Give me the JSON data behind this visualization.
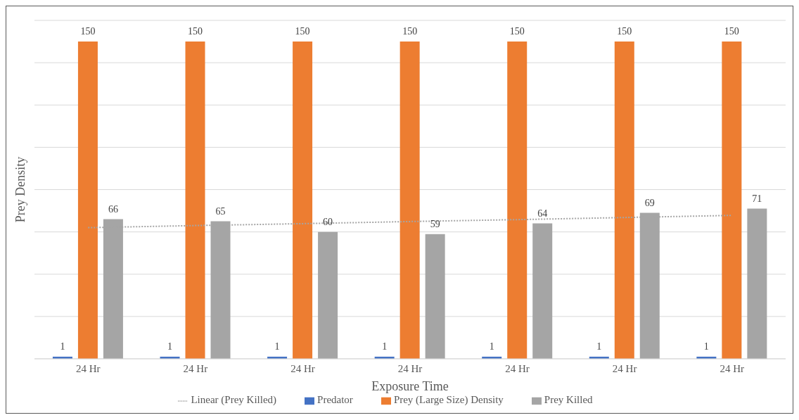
{
  "chart_data": {
    "type": "bar",
    "xlabel": "Exposure Time",
    "ylabel": "Prey Density",
    "categories": [
      "24 Hr",
      "24 Hr",
      "24 Hr",
      "24 Hr",
      "24 Hr",
      "24 Hr",
      "24 Hr"
    ],
    "series": [
      {
        "name": "Predator",
        "color": "#4472c4",
        "values": [
          1,
          1,
          1,
          1,
          1,
          1,
          1
        ]
      },
      {
        "name": "Prey (Large Size) Density",
        "color": "#ed7d31",
        "values": [
          150,
          150,
          150,
          150,
          150,
          150,
          150
        ]
      },
      {
        "name": "Prey Killed",
        "color": "#a5a5a5",
        "values": [
          66,
          65,
          60,
          59,
          64,
          69,
          71
        ]
      },
      {
        "name": "Linear (Prey Killed)",
        "type": "line",
        "color": "#a5a5a5",
        "line_style": "dotted",
        "marker": "none",
        "values": [
          62.0,
          63.0,
          63.9,
          64.9,
          65.8,
          66.8,
          67.8
        ],
        "value_labels": [
          null,
          null,
          null,
          null,
          null,
          null,
          null
        ]
      }
    ],
    "data_labels": true,
    "ylim": [
      0,
      160
    ],
    "yticks": [
      {
        "value": 0,
        "label": null
      },
      {
        "value": 20,
        "label": null
      },
      {
        "value": 40,
        "label": null
      },
      {
        "value": 60,
        "label": null
      },
      {
        "value": 80,
        "label": null
      },
      {
        "value": 100,
        "label": null
      },
      {
        "value": 120,
        "label": null
      },
      {
        "value": 140,
        "label": null
      },
      {
        "value": 160,
        "label": null
      }
    ],
    "tick_labels": "x",
    "grid": "y",
    "legend": "bottom"
  }
}
